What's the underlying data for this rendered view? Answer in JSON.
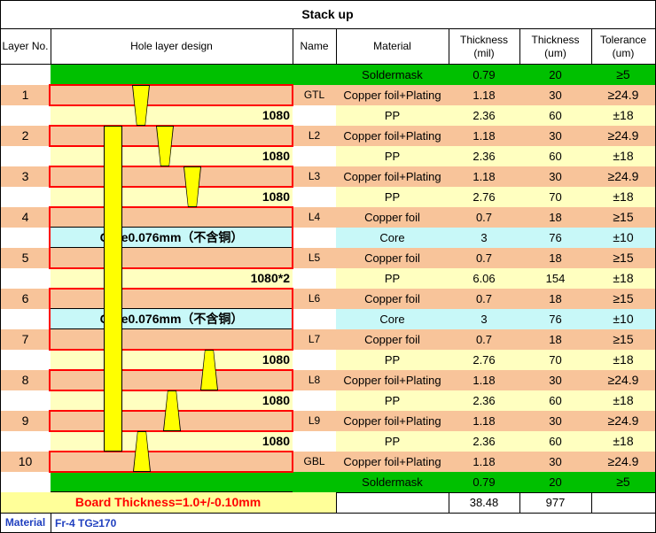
{
  "title": "Stack up",
  "headers": {
    "layer_no": "Layer No.",
    "hole_design": "Hole layer design",
    "name": "Name",
    "material": "Material",
    "thickness_mil": "Thickness (mil)",
    "thickness_um": "Thickness (um)",
    "tolerance": "Tolerance (um)"
  },
  "rows": [
    {
      "layer": "",
      "name": "",
      "material": "Soldermask",
      "mil": "0.79",
      "um": "20",
      "tol": "≥5",
      "type": "mask"
    },
    {
      "layer": "1",
      "name": "GTL",
      "material": "Copper foil+Plating",
      "mil": "1.18",
      "um": "30",
      "tol": "≥24.9",
      "type": "copper"
    },
    {
      "layer": "",
      "name": "",
      "material": "PP",
      "mil": "2.36",
      "um": "60",
      "tol": "±18",
      "type": "pp",
      "pp_label": "1080"
    },
    {
      "layer": "2",
      "name": "L2",
      "material": "Copper foil+Plating",
      "mil": "1.18",
      "um": "30",
      "tol": "≥24.9",
      "type": "copper"
    },
    {
      "layer": "",
      "name": "",
      "material": "PP",
      "mil": "2.36",
      "um": "60",
      "tol": "±18",
      "type": "pp",
      "pp_label": "1080"
    },
    {
      "layer": "3",
      "name": "L3",
      "material": "Copper foil+Plating",
      "mil": "1.18",
      "um": "30",
      "tol": "≥24.9",
      "type": "copper"
    },
    {
      "layer": "",
      "name": "",
      "material": "PP",
      "mil": "2.76",
      "um": "70",
      "tol": "±18",
      "type": "pp",
      "pp_label": "1080"
    },
    {
      "layer": "4",
      "name": "L4",
      "material": "Copper foil",
      "mil": "0.7",
      "um": "18",
      "tol": "≥15",
      "type": "copper"
    },
    {
      "layer": "",
      "name": "",
      "material": "Core",
      "mil": "3",
      "um": "76",
      "tol": "±10",
      "type": "core",
      "core_label": "Core0.076mm（不含铜）"
    },
    {
      "layer": "5",
      "name": "L5",
      "material": "Copper foil",
      "mil": "0.7",
      "um": "18",
      "tol": "≥15",
      "type": "copper"
    },
    {
      "layer": "",
      "name": "",
      "material": "PP",
      "mil": "6.06",
      "um": "154",
      "tol": "±18",
      "type": "pp",
      "pp_label": "1080*2"
    },
    {
      "layer": "6",
      "name": "L6",
      "material": "Copper foil",
      "mil": "0.7",
      "um": "18",
      "tol": "≥15",
      "type": "copper"
    },
    {
      "layer": "",
      "name": "",
      "material": "Core",
      "mil": "3",
      "um": "76",
      "tol": "±10",
      "type": "core",
      "core_label": "Core0.076mm（不含铜）"
    },
    {
      "layer": "7",
      "name": "L7",
      "material": "Copper foil",
      "mil": "0.7",
      "um": "18",
      "tol": "≥15",
      "type": "copper"
    },
    {
      "layer": "",
      "name": "",
      "material": "PP",
      "mil": "2.76",
      "um": "70",
      "tol": "±18",
      "type": "pp",
      "pp_label": "1080"
    },
    {
      "layer": "8",
      "name": "L8",
      "material": "Copper foil+Plating",
      "mil": "1.18",
      "um": "30",
      "tol": "≥24.9",
      "type": "copper"
    },
    {
      "layer": "",
      "name": "",
      "material": "PP",
      "mil": "2.36",
      "um": "60",
      "tol": "±18",
      "type": "pp",
      "pp_label": "1080"
    },
    {
      "layer": "9",
      "name": "L9",
      "material": "Copper foil+Plating",
      "mil": "1.18",
      "um": "30",
      "tol": "≥24.9",
      "type": "copper"
    },
    {
      "layer": "",
      "name": "",
      "material": "PP",
      "mil": "2.36",
      "um": "60",
      "tol": "±18",
      "type": "pp",
      "pp_label": "1080"
    },
    {
      "layer": "10",
      "name": "GBL",
      "material": "Copper foil+Plating",
      "mil": "1.18",
      "um": "30",
      "tol": "≥24.9",
      "type": "copper"
    },
    {
      "layer": "",
      "name": "",
      "material": "Soldermask",
      "mil": "0.79",
      "um": "20",
      "tol": "≥5",
      "type": "mask"
    }
  ],
  "totals": {
    "board_thickness": "Board Thickness=1.0+/-0.10mm",
    "mil": "38.48",
    "um": "977"
  },
  "material_note": {
    "label": "Material",
    "value": "Fr-4  TG≥170"
  },
  "colors": {
    "copper": "#f8c49a",
    "pp": "#ffffc0",
    "core": "#c8f8f8",
    "mask": "#00c000",
    "via": "#ffff00",
    "outline": "#ff0000",
    "footer": "#ffff99"
  }
}
